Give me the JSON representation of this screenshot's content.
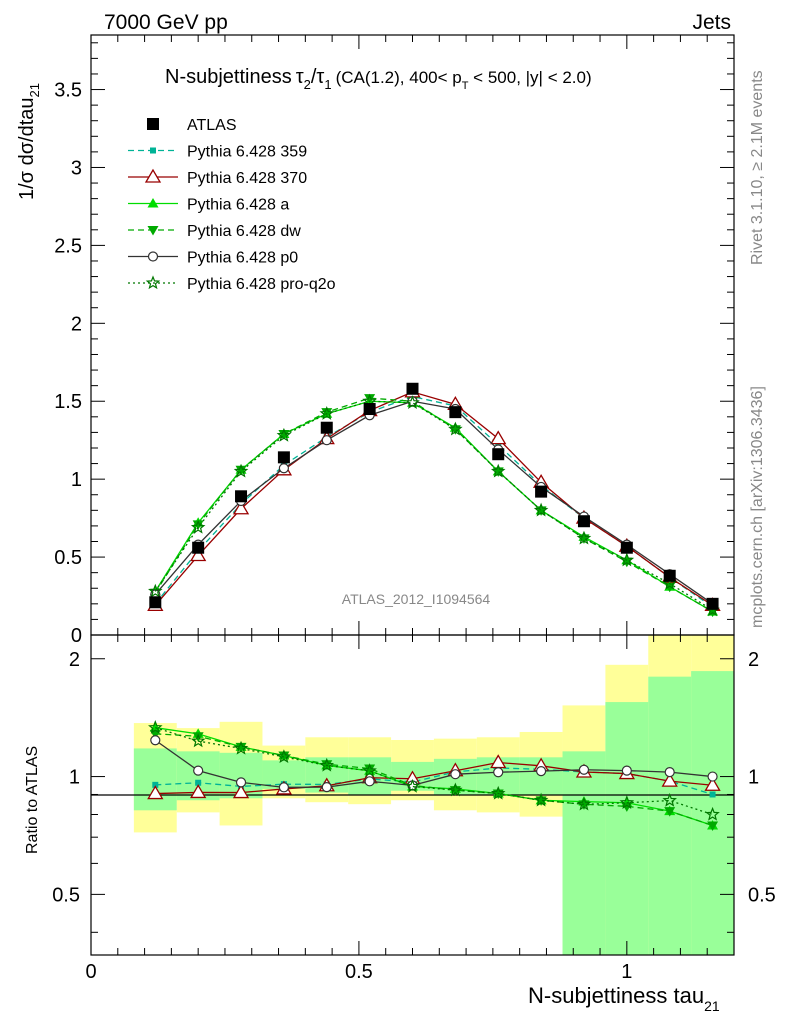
{
  "header": {
    "energy": "7000 GeV pp",
    "category": "Jets",
    "rivet": "Rivet 3.1.10, ≥ 2.1M events",
    "mcplots": "mcplots.cern.ch [arXiv:1306.3436]",
    "analysis": "ATLAS_2012_I1094564"
  },
  "chart_data": {
    "type": "line",
    "title": {
      "main": "N-subjettiness",
      "tau2": "τ",
      "sub2": "2",
      "slash": "/",
      "tau1": "τ",
      "sub1": "1",
      "cuts_a": "(CA(1.2), 400< p",
      "cuts_sub": "T",
      "cuts_b": " < 500, |y| < 2.0)"
    },
    "ylabel_main": {
      "text": "1/σ dσ/dtau",
      "sub": "21"
    },
    "ylabel_ratio": "Ratio to ATLAS",
    "xlabel": {
      "text": "N-subjettiness tau",
      "sub": "21"
    },
    "xlim": [
      0,
      1.2
    ],
    "ylim_main": [
      0,
      3.85
    ],
    "ylim_ratio": [
      0.35,
      2.3
    ],
    "yticks_main": [
      "0",
      "0.5",
      "1",
      "1.5",
      "2",
      "2.5",
      "3",
      "3.5"
    ],
    "yticks_ratio": [
      "0.5",
      "1",
      "2"
    ],
    "xticks": [
      "0",
      "0.5",
      "1"
    ],
    "x": [
      0.12,
      0.2,
      0.28,
      0.36,
      0.44,
      0.52,
      0.6,
      0.68,
      0.76,
      0.84,
      0.92,
      1.0,
      1.08,
      1.16
    ],
    "bin_edges": [
      0.08,
      0.16,
      0.24,
      0.32,
      0.4,
      0.48,
      0.56,
      0.64,
      0.72,
      0.8,
      0.88,
      0.96,
      1.04,
      1.12,
      1.2
    ],
    "data": {
      "name": "ATLAS",
      "color": "#000000",
      "values": [
        0.21,
        0.56,
        0.89,
        1.14,
        1.33,
        1.45,
        1.58,
        1.43,
        1.16,
        0.92,
        0.73,
        0.56,
        0.38,
        0.2
      ]
    },
    "series": [
      {
        "name": "Pythia 6.428 359",
        "color": "#00b396",
        "dash": "6,4",
        "marker": "square",
        "values": [
          0.2,
          0.54,
          0.84,
          1.09,
          1.27,
          1.43,
          1.53,
          1.47,
          1.22,
          0.96,
          0.75,
          0.57,
          0.37,
          0.18
        ]
      },
      {
        "name": "Pythia 6.428 370",
        "color": "#990000",
        "dash": "",
        "marker": "triangle-open",
        "values": [
          0.19,
          0.51,
          0.81,
          1.06,
          1.26,
          1.44,
          1.56,
          1.48,
          1.26,
          0.98,
          0.75,
          0.57,
          0.37,
          0.19
        ]
      },
      {
        "name": "Pythia 6.428 a",
        "color": "#00dd00",
        "dash": "",
        "marker": "triangle",
        "values": [
          0.28,
          0.72,
          1.06,
          1.29,
          1.42,
          1.5,
          1.49,
          1.33,
          1.05,
          0.8,
          0.63,
          0.48,
          0.31,
          0.15
        ]
      },
      {
        "name": "Pythia 6.428 dw",
        "color": "#00aa00",
        "dash": "6,4",
        "marker": "triangle-down",
        "values": [
          0.27,
          0.71,
          1.06,
          1.29,
          1.43,
          1.52,
          1.5,
          1.32,
          1.05,
          0.8,
          0.62,
          0.47,
          0.31,
          0.15
        ]
      },
      {
        "name": "Pythia 6.428 p0",
        "color": "#333333",
        "dash": "",
        "marker": "circle-open",
        "values": [
          0.26,
          0.58,
          0.86,
          1.07,
          1.25,
          1.41,
          1.5,
          1.45,
          1.19,
          0.95,
          0.76,
          0.58,
          0.39,
          0.2
        ]
      },
      {
        "name": "Pythia 6.428 pro-q2o",
        "color": "#007700",
        "dash": "2,3",
        "marker": "star",
        "values": [
          0.28,
          0.69,
          1.05,
          1.28,
          1.42,
          1.5,
          1.49,
          1.32,
          1.05,
          0.8,
          0.62,
          0.48,
          0.33,
          0.16
        ]
      }
    ],
    "ratio_band_inner": [
      [
        0.82,
        1.18
      ],
      [
        0.87,
        1.16
      ],
      [
        0.88,
        1.15
      ],
      [
        0.93,
        1.1
      ],
      [
        0.91,
        1.12
      ],
      [
        0.9,
        1.12
      ],
      [
        0.92,
        1.09
      ],
      [
        0.9,
        1.11
      ],
      [
        0.9,
        1.12
      ],
      [
        0.9,
        1.12
      ],
      [
        0.35,
        1.16
      ],
      [
        0.35,
        1.55
      ],
      [
        0.35,
        1.8
      ],
      [
        0.35,
        1.86
      ]
    ],
    "ratio_band_outer": [
      [
        0.72,
        1.37
      ],
      [
        0.81,
        1.33
      ],
      [
        0.75,
        1.38
      ],
      [
        0.88,
        1.2
      ],
      [
        0.86,
        1.26
      ],
      [
        0.85,
        1.26
      ],
      [
        0.87,
        1.24
      ],
      [
        0.82,
        1.25
      ],
      [
        0.81,
        1.26
      ],
      [
        0.79,
        1.3
      ],
      [
        0.35,
        1.52
      ],
      [
        0.35,
        1.93
      ],
      [
        0.35,
        2.3
      ],
      [
        0.35,
        2.3
      ]
    ]
  }
}
